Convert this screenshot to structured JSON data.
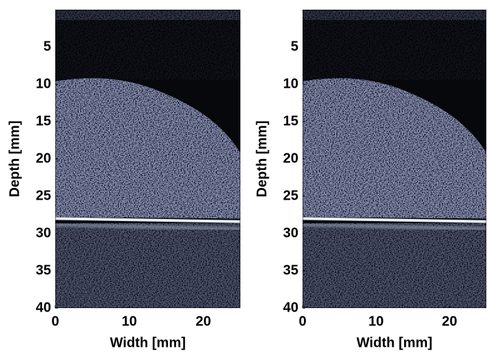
{
  "chart_data": [
    {
      "type": "image",
      "xlabel": "Width [mm]",
      "ylabel": "Depth [mm]",
      "xlim": [
        0,
        25
      ],
      "ylim": [
        0,
        40
      ],
      "xticks": [
        0,
        10,
        20
      ],
      "yticks": [
        5,
        10,
        15,
        20,
        25,
        30,
        35,
        40
      ]
    },
    {
      "type": "image",
      "xlabel": "Width [mm]",
      "ylabel": "Depth [mm]",
      "xlim": [
        0,
        25
      ],
      "ylim": [
        0,
        40
      ],
      "xticks": [
        0,
        10,
        20
      ],
      "yticks": [
        5,
        10,
        15,
        20,
        25,
        30,
        35,
        40
      ]
    }
  ]
}
